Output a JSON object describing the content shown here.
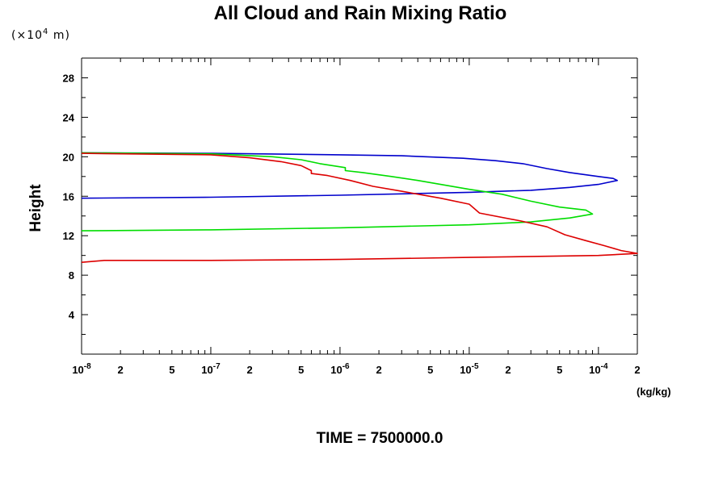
{
  "chart_data": {
    "type": "line",
    "title": "All Cloud and Rain Mixing Ratio",
    "y_unit_prefix": "(×10",
    "y_unit_exp": "4",
    "y_unit_suffix": " m)",
    "ylabel": "Height",
    "xlabel": "(kg/kg)",
    "footer": "TIME = 7500000.0",
    "xscale": "log",
    "xlim": [
      1e-08,
      0.0002
    ],
    "ylim": [
      0,
      30
    ],
    "y_ticks": [
      {
        "value": 4,
        "label": "4"
      },
      {
        "value": 8,
        "label": "8"
      },
      {
        "value": 12,
        "label": "12"
      },
      {
        "value": 16,
        "label": "16"
      },
      {
        "value": 20,
        "label": "20"
      },
      {
        "value": 24,
        "label": "24"
      },
      {
        "value": 28,
        "label": "28"
      }
    ],
    "x_ticks": [
      {
        "value": 1e-08,
        "base": "10",
        "exp": "-8"
      },
      {
        "value": 2e-08,
        "base": "2",
        "exp": ""
      },
      {
        "value": 5e-08,
        "base": "5",
        "exp": ""
      },
      {
        "value": 1e-07,
        "base": "10",
        "exp": "-7"
      },
      {
        "value": 2e-07,
        "base": "2",
        "exp": ""
      },
      {
        "value": 5e-07,
        "base": "5",
        "exp": ""
      },
      {
        "value": 1e-06,
        "base": "10",
        "exp": "-6"
      },
      {
        "value": 2e-06,
        "base": "2",
        "exp": ""
      },
      {
        "value": 5e-06,
        "base": "5",
        "exp": ""
      },
      {
        "value": 1e-05,
        "base": "10",
        "exp": "-5"
      },
      {
        "value": 2e-05,
        "base": "2",
        "exp": ""
      },
      {
        "value": 5e-05,
        "base": "5",
        "exp": ""
      },
      {
        "value": 0.0001,
        "base": "10",
        "exp": "-4"
      },
      {
        "value": 0.0002,
        "base": "2",
        "exp": ""
      }
    ],
    "series": [
      {
        "name": "blue",
        "color": "#0000cc",
        "points": [
          [
            1e-08,
            15.8
          ],
          [
            1e-07,
            15.9
          ],
          [
            1e-06,
            16.1
          ],
          [
            1e-05,
            16.4
          ],
          [
            3e-05,
            16.6
          ],
          [
            6e-05,
            16.9
          ],
          [
            0.0001,
            17.2
          ],
          [
            0.00014,
            17.6
          ],
          [
            0.00013,
            17.8
          ],
          [
            0.0001,
            18.0
          ],
          [
            6e-05,
            18.4
          ],
          [
            4e-05,
            18.8
          ],
          [
            2.6e-05,
            19.3
          ],
          [
            1.6e-05,
            19.6
          ],
          [
            9e-06,
            19.85
          ],
          [
            3e-06,
            20.1
          ],
          [
            1e-06,
            20.2
          ],
          [
            1e-07,
            20.35
          ],
          [
            1e-08,
            20.4
          ]
        ]
      },
      {
        "name": "green",
        "color": "#00dd00",
        "points": [
          [
            1e-08,
            12.5
          ],
          [
            1e-07,
            12.6
          ],
          [
            1e-06,
            12.8
          ],
          [
            1e-05,
            13.1
          ],
          [
            3e-05,
            13.4
          ],
          [
            6e-05,
            13.8
          ],
          [
            9e-05,
            14.2
          ],
          [
            8e-05,
            14.6
          ],
          [
            5e-05,
            14.9
          ],
          [
            3e-05,
            15.5
          ],
          [
            1.8e-05,
            16.2
          ],
          [
            1e-05,
            16.7
          ],
          [
            6e-06,
            17.2
          ],
          [
            4e-06,
            17.6
          ],
          [
            2.5e-06,
            18.0
          ],
          [
            1.5e-06,
            18.4
          ],
          [
            1.1e-06,
            18.6
          ],
          [
            1.1e-06,
            18.9
          ],
          [
            7e-07,
            19.3
          ],
          [
            5e-07,
            19.7
          ],
          [
            3e-07,
            20.0
          ],
          [
            1e-07,
            20.3
          ],
          [
            1e-08,
            20.4
          ]
        ]
      },
      {
        "name": "red",
        "color": "#dd0000",
        "points": [
          [
            1e-08,
            9.3
          ],
          [
            1.5e-08,
            9.5
          ],
          [
            1e-07,
            9.5
          ],
          [
            1e-06,
            9.6
          ],
          [
            1e-05,
            9.8
          ],
          [
            0.0001,
            10.0
          ],
          [
            0.0002,
            10.2
          ],
          [
            0.00015,
            10.5
          ],
          [
            0.00011,
            11.0
          ],
          [
            8e-05,
            11.5
          ],
          [
            5.5e-05,
            12.1
          ],
          [
            4e-05,
            12.9
          ],
          [
            2.5e-05,
            13.5
          ],
          [
            1.2e-05,
            14.3
          ],
          [
            1e-05,
            15.2
          ],
          [
            6e-06,
            15.8
          ],
          [
            3e-06,
            16.5
          ],
          [
            1.8e-06,
            17.0
          ],
          [
            1.2e-06,
            17.6
          ],
          [
            8e-07,
            18.1
          ],
          [
            6e-07,
            18.3
          ],
          [
            6e-07,
            18.6
          ],
          [
            5e-07,
            19.1
          ],
          [
            3.5e-07,
            19.5
          ],
          [
            2e-07,
            19.9
          ],
          [
            1e-07,
            20.2
          ],
          [
            1e-08,
            20.35
          ]
        ]
      }
    ]
  }
}
